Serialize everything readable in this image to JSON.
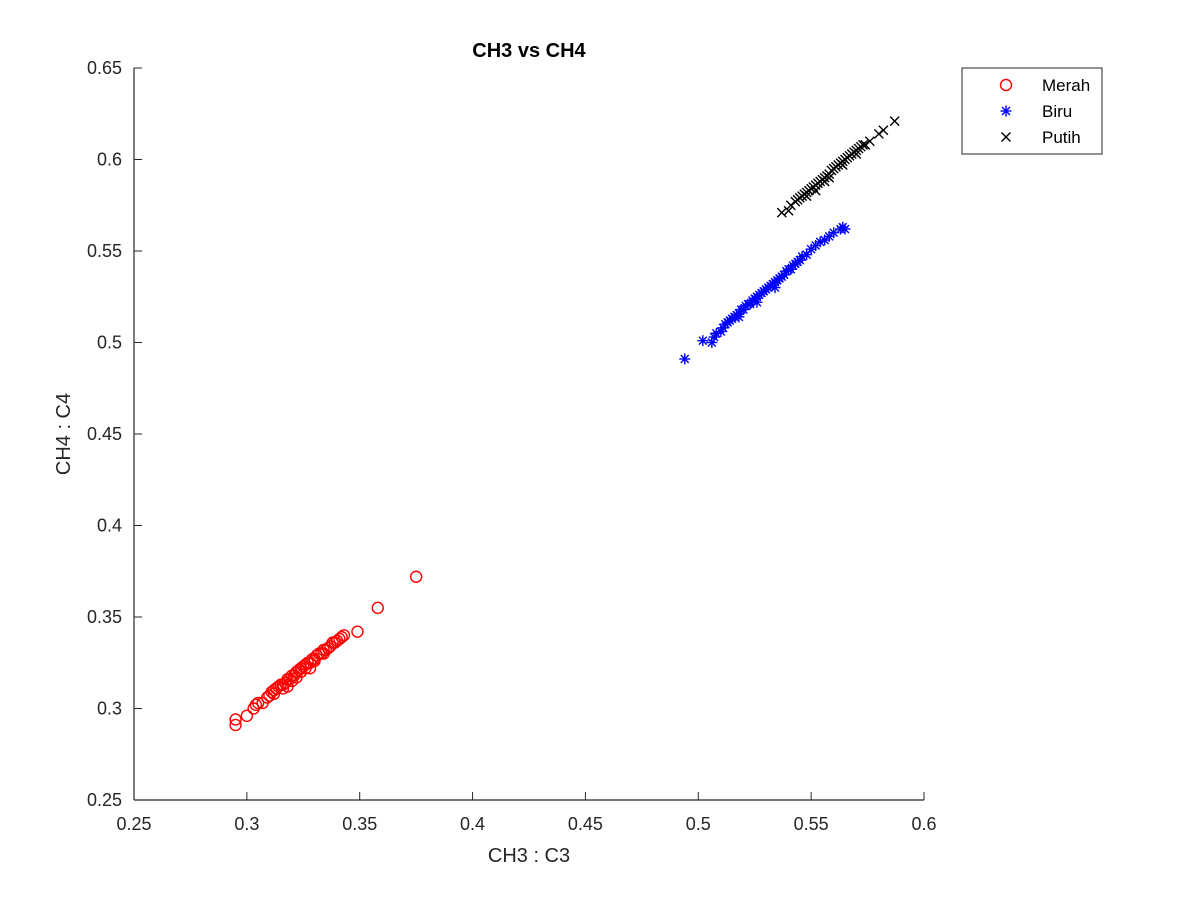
{
  "chart_data": {
    "type": "scatter",
    "title": "CH3 vs CH4",
    "xlabel": "CH3 : C3",
    "ylabel": "CH4 : C4",
    "xlim": [
      0.25,
      0.6
    ],
    "ylim": [
      0.25,
      0.65
    ],
    "xticks": [
      "0.25",
      "0.3",
      "0.35",
      "0.4",
      "0.45",
      "0.5",
      "0.55",
      "0.6"
    ],
    "yticks": [
      "0.25",
      "0.3",
      "0.35",
      "0.4",
      "0.45",
      "0.5",
      "0.55",
      "0.6",
      "0.65"
    ],
    "grid": false,
    "legend_position": "top-right outside",
    "series": [
      {
        "name": "Merah",
        "marker": "circle",
        "color": "#ff0000",
        "points": [
          [
            0.295,
            0.291
          ],
          [
            0.295,
            0.294
          ],
          [
            0.3,
            0.296
          ],
          [
            0.303,
            0.3
          ],
          [
            0.304,
            0.302
          ],
          [
            0.305,
            0.303
          ],
          [
            0.307,
            0.303
          ],
          [
            0.309,
            0.306
          ],
          [
            0.31,
            0.307
          ],
          [
            0.311,
            0.309
          ],
          [
            0.312,
            0.31
          ],
          [
            0.313,
            0.311
          ],
          [
            0.314,
            0.312
          ],
          [
            0.315,
            0.313
          ],
          [
            0.316,
            0.313
          ],
          [
            0.317,
            0.314
          ],
          [
            0.318,
            0.316
          ],
          [
            0.319,
            0.316
          ],
          [
            0.32,
            0.318
          ],
          [
            0.321,
            0.318
          ],
          [
            0.322,
            0.32
          ],
          [
            0.323,
            0.321
          ],
          [
            0.324,
            0.322
          ],
          [
            0.325,
            0.323
          ],
          [
            0.326,
            0.324
          ],
          [
            0.327,
            0.325
          ],
          [
            0.328,
            0.325
          ],
          [
            0.329,
            0.327
          ],
          [
            0.33,
            0.327
          ],
          [
            0.331,
            0.329
          ],
          [
            0.332,
            0.33
          ],
          [
            0.333,
            0.33
          ],
          [
            0.334,
            0.332
          ],
          [
            0.335,
            0.332
          ],
          [
            0.336,
            0.333
          ],
          [
            0.337,
            0.334
          ],
          [
            0.338,
            0.336
          ],
          [
            0.339,
            0.336
          ],
          [
            0.34,
            0.337
          ],
          [
            0.341,
            0.338
          ],
          [
            0.342,
            0.339
          ],
          [
            0.343,
            0.34
          ],
          [
            0.349,
            0.342
          ],
          [
            0.358,
            0.355
          ],
          [
            0.375,
            0.372
          ],
          [
            0.318,
            0.312
          ],
          [
            0.322,
            0.317
          ],
          [
            0.326,
            0.322
          ],
          [
            0.33,
            0.326
          ],
          [
            0.312,
            0.308
          ],
          [
            0.334,
            0.33
          ],
          [
            0.328,
            0.322
          ],
          [
            0.324,
            0.32
          ],
          [
            0.316,
            0.311
          ],
          [
            0.32,
            0.315
          ]
        ]
      },
      {
        "name": "Biru",
        "marker": "asterisk",
        "color": "#0000ff",
        "points": [
          [
            0.494,
            0.491
          ],
          [
            0.502,
            0.501
          ],
          [
            0.506,
            0.5
          ],
          [
            0.507,
            0.503
          ],
          [
            0.508,
            0.505
          ],
          [
            0.51,
            0.506
          ],
          [
            0.511,
            0.508
          ],
          [
            0.512,
            0.51
          ],
          [
            0.513,
            0.511
          ],
          [
            0.514,
            0.512
          ],
          [
            0.515,
            0.513
          ],
          [
            0.516,
            0.514
          ],
          [
            0.517,
            0.515
          ],
          [
            0.518,
            0.516
          ],
          [
            0.519,
            0.518
          ],
          [
            0.52,
            0.518
          ],
          [
            0.521,
            0.52
          ],
          [
            0.522,
            0.521
          ],
          [
            0.523,
            0.521
          ],
          [
            0.524,
            0.523
          ],
          [
            0.525,
            0.524
          ],
          [
            0.526,
            0.525
          ],
          [
            0.527,
            0.526
          ],
          [
            0.528,
            0.527
          ],
          [
            0.529,
            0.528
          ],
          [
            0.53,
            0.529
          ],
          [
            0.531,
            0.53
          ],
          [
            0.532,
            0.531
          ],
          [
            0.533,
            0.532
          ],
          [
            0.534,
            0.533
          ],
          [
            0.535,
            0.534
          ],
          [
            0.536,
            0.535
          ],
          [
            0.537,
            0.536
          ],
          [
            0.538,
            0.537
          ],
          [
            0.539,
            0.539
          ],
          [
            0.54,
            0.54
          ],
          [
            0.541,
            0.54
          ],
          [
            0.542,
            0.542
          ],
          [
            0.543,
            0.543
          ],
          [
            0.544,
            0.544
          ],
          [
            0.545,
            0.545
          ],
          [
            0.546,
            0.547
          ],
          [
            0.548,
            0.548
          ],
          [
            0.55,
            0.551
          ],
          [
            0.552,
            0.553
          ],
          [
            0.554,
            0.555
          ],
          [
            0.556,
            0.556
          ],
          [
            0.558,
            0.558
          ],
          [
            0.56,
            0.56
          ],
          [
            0.563,
            0.562
          ],
          [
            0.564,
            0.563
          ],
          [
            0.565,
            0.562
          ],
          [
            0.518,
            0.514
          ],
          [
            0.526,
            0.522
          ],
          [
            0.534,
            0.53
          ]
        ]
      },
      {
        "name": "Putih",
        "marker": "x",
        "color": "#000000",
        "points": [
          [
            0.537,
            0.571
          ],
          [
            0.54,
            0.572
          ],
          [
            0.541,
            0.575
          ],
          [
            0.543,
            0.577
          ],
          [
            0.544,
            0.578
          ],
          [
            0.545,
            0.579
          ],
          [
            0.546,
            0.58
          ],
          [
            0.547,
            0.581
          ],
          [
            0.548,
            0.582
          ],
          [
            0.549,
            0.583
          ],
          [
            0.55,
            0.584
          ],
          [
            0.551,
            0.585
          ],
          [
            0.552,
            0.586
          ],
          [
            0.553,
            0.587
          ],
          [
            0.554,
            0.588
          ],
          [
            0.555,
            0.589
          ],
          [
            0.556,
            0.59
          ],
          [
            0.557,
            0.591
          ],
          [
            0.558,
            0.592
          ],
          [
            0.559,
            0.594
          ],
          [
            0.56,
            0.595
          ],
          [
            0.561,
            0.596
          ],
          [
            0.562,
            0.597
          ],
          [
            0.563,
            0.598
          ],
          [
            0.564,
            0.599
          ],
          [
            0.565,
            0.6
          ],
          [
            0.566,
            0.601
          ],
          [
            0.567,
            0.602
          ],
          [
            0.568,
            0.603
          ],
          [
            0.569,
            0.604
          ],
          [
            0.57,
            0.605
          ],
          [
            0.571,
            0.606
          ],
          [
            0.572,
            0.607
          ],
          [
            0.573,
            0.608
          ],
          [
            0.574,
            0.608
          ],
          [
            0.576,
            0.61
          ],
          [
            0.58,
            0.614
          ],
          [
            0.582,
            0.616
          ],
          [
            0.587,
            0.621
          ],
          [
            0.552,
            0.583
          ],
          [
            0.558,
            0.59
          ],
          [
            0.564,
            0.597
          ],
          [
            0.57,
            0.603
          ],
          [
            0.548,
            0.58
          ],
          [
            0.556,
            0.588
          ]
        ]
      }
    ]
  }
}
